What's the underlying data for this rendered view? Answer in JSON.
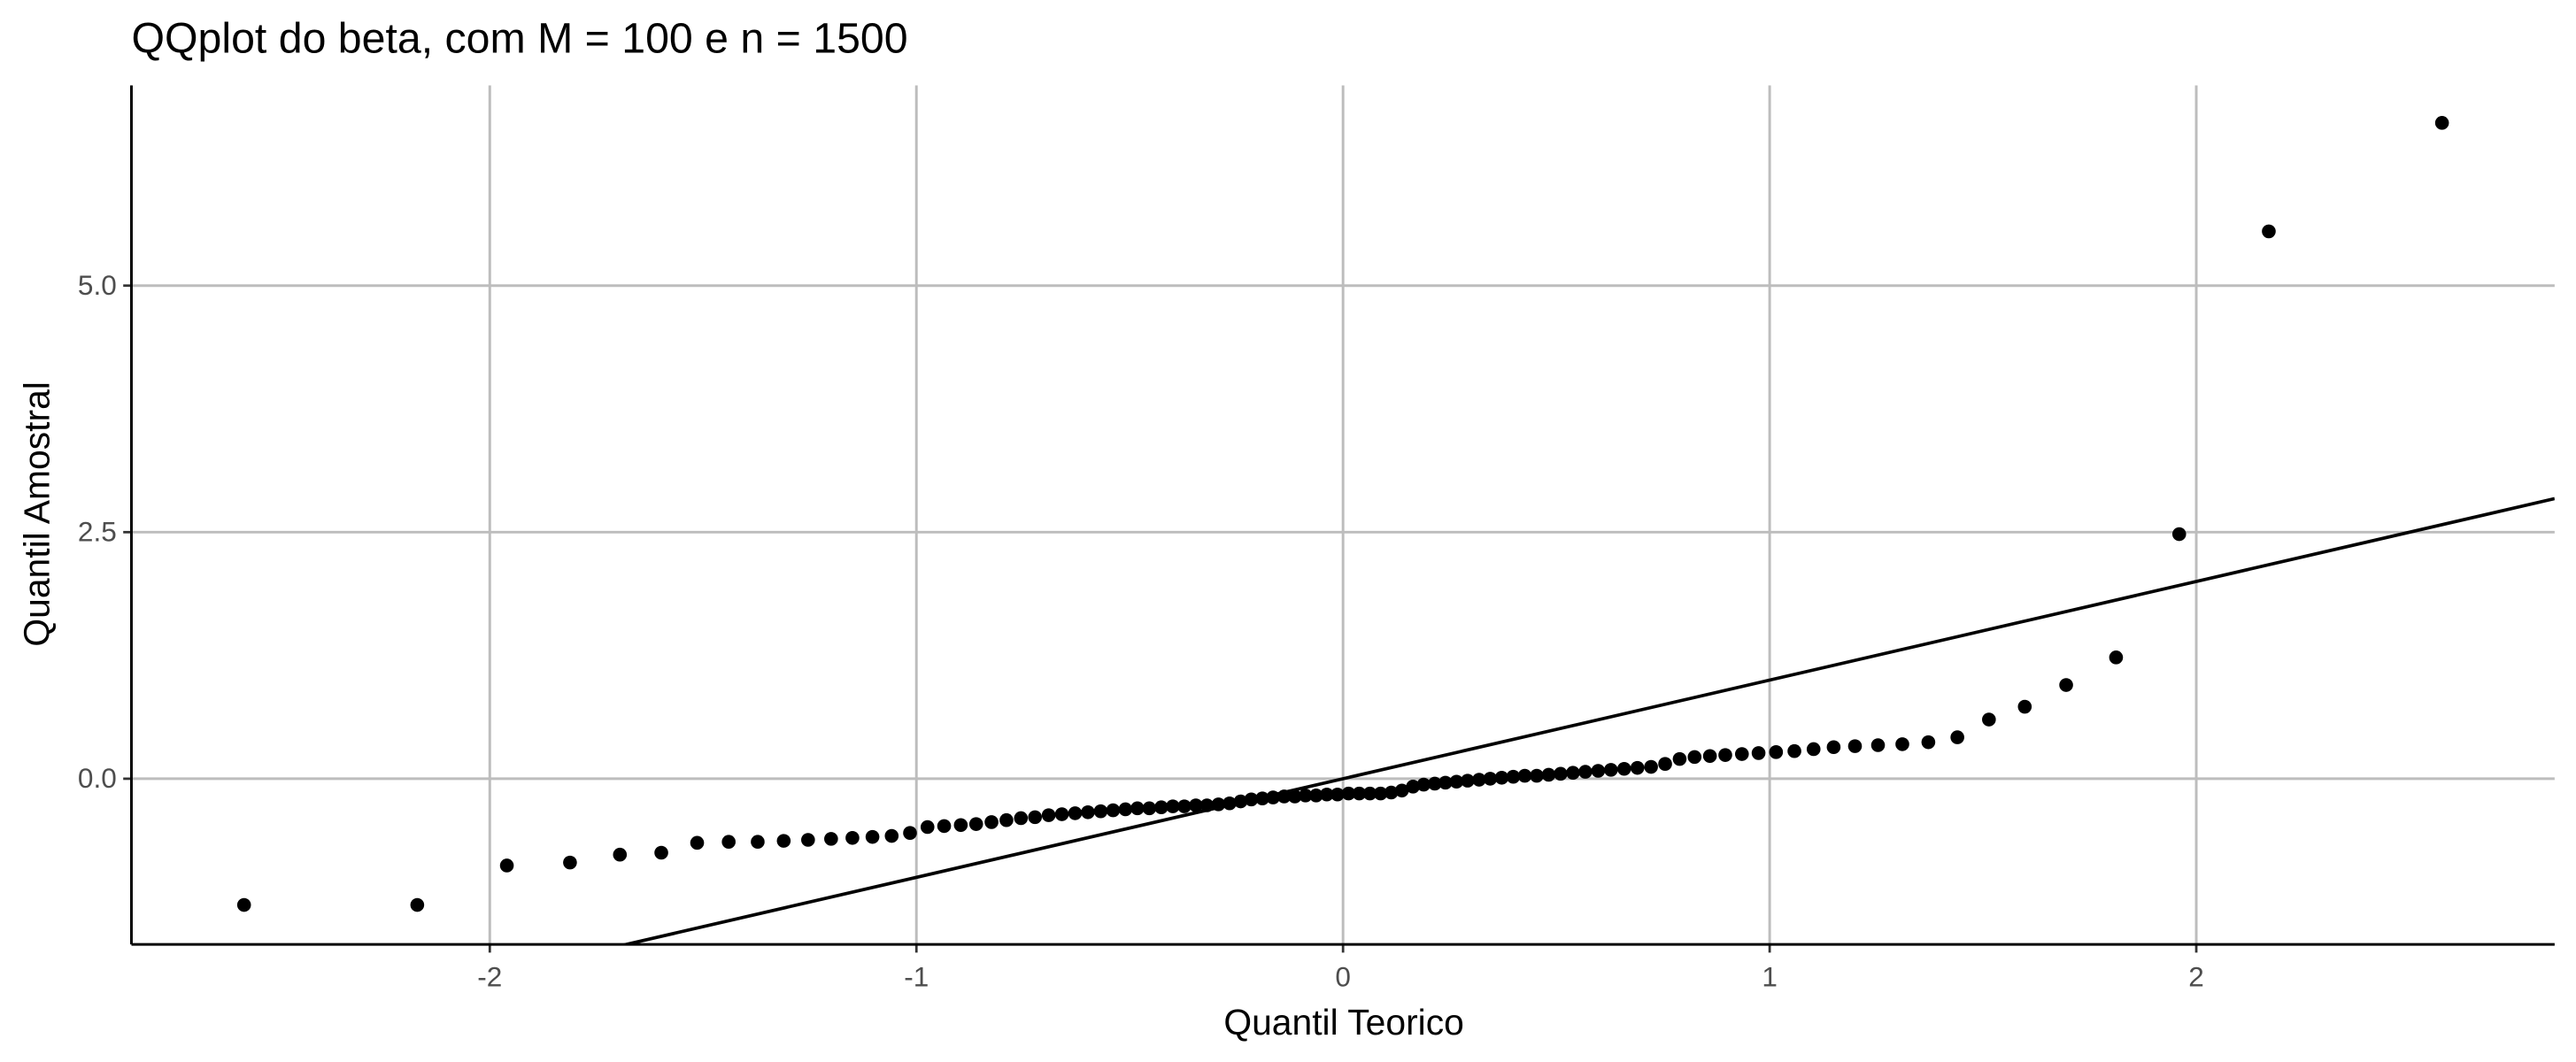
{
  "chart_data": {
    "type": "scatter",
    "title": "QQplot do beta, com M = 100 e n = 1500",
    "x_label": "Quantil Teorico",
    "y_label": "Quantil Amostral",
    "x": [
      -2.576,
      -2.17,
      -1.96,
      -1.812,
      -1.695,
      -1.598,
      -1.514,
      -1.44,
      -1.372,
      -1.311,
      -1.254,
      -1.2,
      -1.15,
      -1.103,
      -1.058,
      -1.015,
      -0.974,
      -0.935,
      -0.896,
      -0.86,
      -0.824,
      -0.789,
      -0.755,
      -0.722,
      -0.69,
      -0.659,
      -0.628,
      -0.598,
      -0.568,
      -0.539,
      -0.51,
      -0.482,
      -0.454,
      -0.426,
      -0.399,
      -0.372,
      -0.345,
      -0.319,
      -0.292,
      -0.266,
      -0.24,
      -0.215,
      -0.189,
      -0.164,
      -0.138,
      -0.113,
      -0.088,
      -0.063,
      -0.038,
      -0.013,
      0.013,
      0.038,
      0.063,
      0.088,
      0.113,
      0.138,
      0.164,
      0.189,
      0.215,
      0.24,
      0.266,
      0.292,
      0.319,
      0.345,
      0.372,
      0.399,
      0.426,
      0.454,
      0.482,
      0.51,
      0.539,
      0.568,
      0.598,
      0.628,
      0.659,
      0.69,
      0.722,
      0.755,
      0.789,
      0.824,
      0.86,
      0.896,
      0.935,
      0.974,
      1.015,
      1.058,
      1.103,
      1.15,
      1.2,
      1.254,
      1.311,
      1.372,
      1.44,
      1.514,
      1.598,
      1.695,
      1.812,
      1.96,
      2.17,
      2.576
    ],
    "values": [
      -1.28,
      -1.28,
      -0.88,
      -0.85,
      -0.77,
      -0.75,
      -0.65,
      -0.64,
      -0.64,
      -0.63,
      -0.62,
      -0.61,
      -0.6,
      -0.59,
      -0.58,
      -0.55,
      -0.49,
      -0.48,
      -0.47,
      -0.46,
      -0.44,
      -0.42,
      -0.4,
      -0.39,
      -0.37,
      -0.36,
      -0.35,
      -0.34,
      -0.33,
      -0.32,
      -0.31,
      -0.3,
      -0.3,
      -0.29,
      -0.28,
      -0.28,
      -0.27,
      -0.27,
      -0.26,
      -0.25,
      -0.23,
      -0.21,
      -0.2,
      -0.19,
      -0.18,
      -0.18,
      -0.17,
      -0.17,
      -0.16,
      -0.16,
      -0.15,
      -0.15,
      -0.15,
      -0.15,
      -0.14,
      -0.12,
      -0.08,
      -0.06,
      -0.05,
      -0.04,
      -0.03,
      -0.02,
      -0.01,
      0,
      0.01,
      0.02,
      0.03,
      0.03,
      0.04,
      0.05,
      0.06,
      0.07,
      0.08,
      0.09,
      0.1,
      0.11,
      0.12,
      0.15,
      0.2,
      0.22,
      0.23,
      0.24,
      0.25,
      0.26,
      0.27,
      0.28,
      0.3,
      0.32,
      0.33,
      0.34,
      0.35,
      0.37,
      0.42,
      0.6,
      0.73,
      0.95,
      1.23,
      2.48,
      5.55,
      6.65
    ],
    "color": "#000000",
    "reference_line": {
      "slope": 1,
      "intercept": 0,
      "color": "#000000"
    },
    "xlim": [
      -2.84,
      2.84
    ],
    "ylim": [
      -1.68,
      7.03
    ],
    "xticks": [
      -2,
      -1,
      0,
      1,
      2
    ],
    "yticks": [
      {
        "value": 0,
        "label": "0.0"
      },
      2.5,
      {
        "value": 5,
        "label": "5.0"
      }
    ],
    "grid": true
  }
}
